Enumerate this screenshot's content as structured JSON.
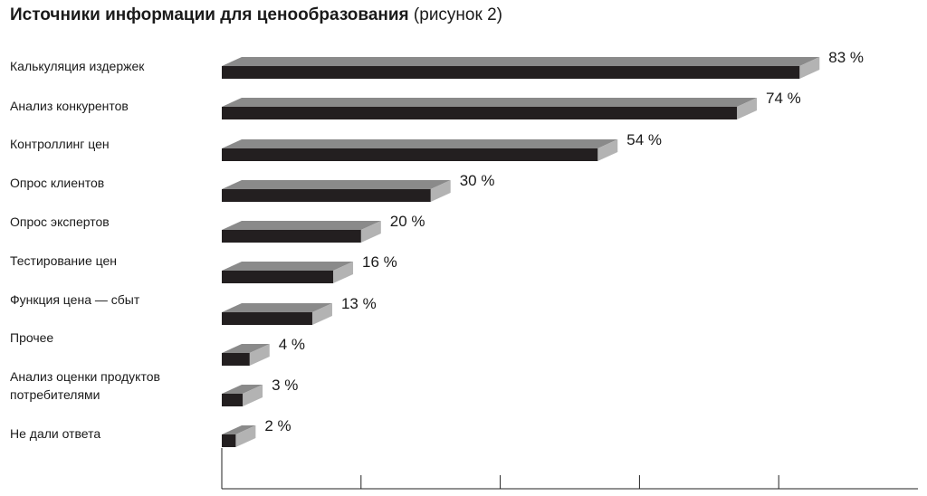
{
  "title": {
    "bold": "Источники информации для ценообразования",
    "suffix": "(рисунок 2)"
  },
  "colors": {
    "bar_front": "#231f20",
    "bar_top": "#8a8a8a",
    "bar_side": "#b3b3b3",
    "axis": "#222222"
  },
  "chart_data": {
    "type": "bar",
    "orientation": "horizontal",
    "style": "3d",
    "title": "Источники информации для ценообразования (рисунок 2)",
    "categories": [
      [
        "Калькуляция издержек"
      ],
      [
        "Анализ конкурентов"
      ],
      [
        "Контроллинг цен"
      ],
      [
        "Опрос клиентов"
      ],
      [
        "Опрос экспертов"
      ],
      [
        "Тестирование цен"
      ],
      [
        "Функция цена — сбыт"
      ],
      [
        "Прочее"
      ],
      [
        "Анализ оценки продуктов",
        "потребителями"
      ],
      [
        "Не дали ответа"
      ]
    ],
    "values": [
      83,
      74,
      54,
      30,
      20,
      16,
      13,
      4,
      3,
      2
    ],
    "value_labels": [
      "83 %",
      "74 %",
      "54 %",
      "30 %",
      "20 %",
      "16 %",
      "13 %",
      "4 %",
      "3 %",
      "2 %"
    ],
    "unit": "%",
    "xlim": [
      0,
      100
    ],
    "xticks": [
      0,
      20,
      40,
      60,
      80
    ],
    "tick_labels_shown": false,
    "grid": false,
    "legend": "none"
  }
}
